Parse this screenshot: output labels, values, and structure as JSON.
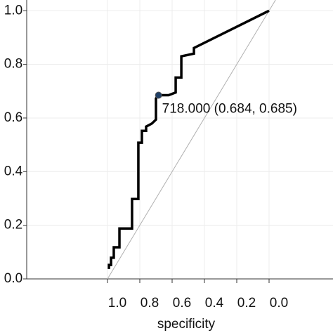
{
  "chart_data": {
    "type": "line",
    "x_label": "specificity",
    "xlim": [
      1.5,
      -0.4
    ],
    "ylim": [
      0,
      1.04
    ],
    "xticks": [
      {
        "value": 1,
        "label": "1.0"
      },
      0.8,
      0.6,
      0.4,
      0.2,
      {
        "value": 0,
        "label": "0.0"
      }
    ],
    "yticks": [
      {
        "value": 0,
        "label": "0.0"
      },
      0.2,
      0.4,
      0.6,
      0.8,
      {
        "value": 1,
        "label": "1.0"
      }
    ],
    "grid": true,
    "diagonal_color": "#b0b0b0",
    "series": [
      {
        "color": "#000000",
        "x": [
          0.991,
          0.991,
          0.978,
          0.978,
          0.961,
          0.961,
          0.926,
          0.926,
          0.848,
          0.848,
          0.809,
          0.809,
          0.787,
          0.787,
          0.761,
          0.761,
          0.726,
          0.7,
          0.7,
          0.684,
          0.622,
          0.578,
          0.578,
          0.543,
          0.543,
          0.465,
          0.465,
          0
        ],
        "values": [
          0.037,
          0.052,
          0.052,
          0.079,
          0.079,
          0.118,
          0.118,
          0.188,
          0.188,
          0.298,
          0.298,
          0.508,
          0.508,
          0.552,
          0.552,
          0.568,
          0.579,
          0.594,
          0.673,
          0.685,
          0.685,
          0.695,
          0.751,
          0.751,
          0.83,
          0.84,
          0.861,
          1
        ]
      }
    ],
    "annotation": {
      "text": "718.000 (0.684, 0.685)",
      "x": 0.684,
      "y": 0.685,
      "color": "#1f3f66"
    }
  }
}
